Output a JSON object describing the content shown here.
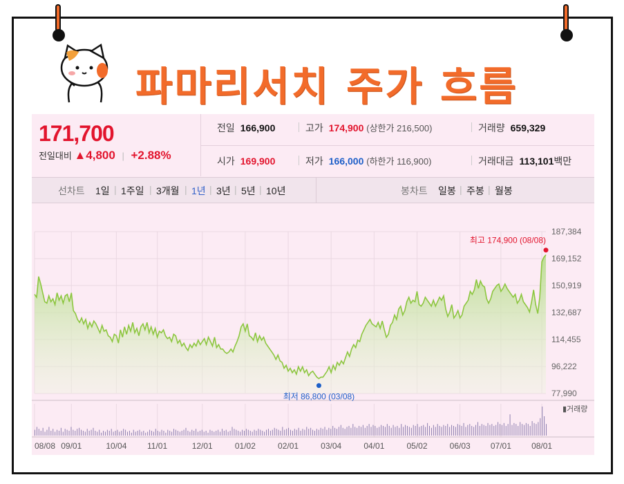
{
  "title": "파마리서치 주가 흐름",
  "quote": {
    "price": "171,700",
    "change_label": "전일대비",
    "change_arrow": "▲",
    "change": "4,800",
    "change_pct": "+2.88%",
    "stats": {
      "prev_close_label": "전일",
      "prev_close": "166,900",
      "high_label": "고가",
      "high": "174,900",
      "upper_limit": "(상한가 216,500)",
      "volume_label": "거래량",
      "volume": "659,329",
      "open_label": "시가",
      "open": "169,900",
      "low_label": "저가",
      "low": "166,000",
      "lower_limit": "(하한가 116,900)",
      "value_label": "거래대금",
      "value": "113,101",
      "value_unit": "백만"
    }
  },
  "tabs": {
    "line_label": "선차트",
    "periods": [
      "1일",
      "1주일",
      "3개월",
      "1년",
      "3년",
      "5년",
      "10년"
    ],
    "active": "1년",
    "candle_label": "봉차트",
    "candle_periods": [
      "일봉",
      "주봉",
      "월봉"
    ]
  },
  "colors": {
    "accent": "#f26b2a",
    "up": "#e2142d",
    "down": "#1e5fc8",
    "line": "#8cc63f",
    "panel": "#fcebf4"
  },
  "chart_data": {
    "type": "area",
    "x_ticks": [
      "08/08",
      "09/01",
      "10/04",
      "11/01",
      "12/01",
      "01/02",
      "02/01",
      "03/04",
      "04/01",
      "05/02",
      "06/03",
      "07/01",
      "08/01"
    ],
    "y_ticks": [
      "187,384",
      "169,152",
      "150,919",
      "132,687",
      "114,455",
      "96,222",
      "77,990"
    ],
    "ylim": [
      77990,
      187384
    ],
    "volume_label": "거래량",
    "grid": true,
    "high_annotation": "최고 174,900 (08/08)",
    "low_annotation": "최저 86,800 (03/08)",
    "series": [
      {
        "values": [
          145000,
          143000,
          157000,
          152000,
          146000,
          140000,
          139000,
          144000,
          140000,
          142000,
          138000,
          146000,
          141000,
          144000,
          139000,
          144000,
          145000,
          140000,
          146000,
          134000,
          132000,
          128000,
          126000,
          129000,
          125000,
          128000,
          122000,
          126000,
          123000,
          127000,
          125000,
          122000,
          119000,
          124000,
          120000,
          121000,
          117000,
          116000,
          113000,
          118000,
          117000,
          112000,
          121000,
          116000,
          123000,
          118000,
          124000,
          120000,
          126000,
          119000,
          122000,
          117000,
          123000,
          125000,
          121000,
          126000,
          119000,
          123000,
          118000,
          122000,
          116000,
          120000,
          119000,
          121000,
          117000,
          115000,
          116000,
          113000,
          118000,
          117000,
          112000,
          114000,
          110000,
          112000,
          109000,
          107000,
          111000,
          109000,
          112000,
          110000,
          114000,
          111000,
          113000,
          115000,
          111000,
          116000,
          113000,
          110000,
          116000,
          109000,
          111000,
          108000,
          108000,
          106000,
          105000,
          106000,
          108000,
          106000,
          110000,
          113000,
          117000,
          123000,
          125000,
          120000,
          125000,
          117000,
          116000,
          114000,
          119000,
          113000,
          117000,
          114000,
          116000,
          112000,
          110000,
          108000,
          106000,
          104000,
          101000,
          104000,
          100000,
          99000,
          95000,
          97000,
          93000,
          95000,
          92000,
          94000,
          91000,
          96000,
          93000,
          96000,
          92000,
          94000,
          90000,
          92000,
          93000,
          91000,
          89000,
          88000,
          89000,
          89000,
          91000,
          93000,
          96000,
          92000,
          97000,
          94000,
          99000,
          97000,
          100000,
          98000,
          102000,
          106000,
          103000,
          108000,
          111000,
          109000,
          114000,
          113000,
          118000,
          121000,
          124000,
          126000,
          128000,
          125000,
          124000,
          123000,
          126000,
          122000,
          127000,
          121000,
          116000,
          118000,
          124000,
          126000,
          131000,
          128000,
          135000,
          137000,
          131000,
          134000,
          140000,
          143000,
          139000,
          141000,
          140000,
          147000,
          138000,
          137000,
          139000,
          143000,
          141000,
          139000,
          137000,
          141000,
          137000,
          140000,
          143000,
          141000,
          144000,
          135000,
          130000,
          133000,
          138000,
          129000,
          131000,
          134000,
          129000,
          131000,
          137000,
          139000,
          141000,
          147000,
          145000,
          148000,
          155000,
          149000,
          154000,
          151000,
          150000,
          142000,
          139000,
          142000,
          147000,
          149000,
          151000,
          152000,
          147000,
          149000,
          152000,
          149000,
          147000,
          145000,
          143000,
          145000,
          139000,
          141000,
          145000,
          140000,
          138000,
          136000,
          133000,
          140000,
          148000,
          138000,
          132000,
          143000,
          167000,
          170000,
          171700
        ]
      }
    ],
    "volume": [
      6,
      9,
      7,
      5,
      8,
      4,
      6,
      9,
      5,
      7,
      4,
      6,
      5,
      8,
      4,
      7,
      6,
      5,
      9,
      6,
      5,
      7,
      8,
      6,
      5,
      4,
      7,
      5,
      6,
      8,
      5,
      4,
      6,
      3,
      5,
      4,
      6,
      5,
      7,
      4,
      5,
      6,
      4,
      5,
      7,
      6,
      4,
      5,
      3,
      6,
      4,
      5,
      6,
      4,
      5,
      3,
      4,
      6,
      5,
      4,
      7,
      5,
      4,
      6,
      5,
      3,
      6,
      5,
      4,
      7,
      6,
      5,
      4,
      5,
      6,
      8,
      5,
      4,
      6,
      5,
      7,
      4,
      5,
      6,
      4,
      5,
      3,
      6,
      5,
      4,
      5,
      6,
      4,
      7,
      5,
      6,
      4,
      5,
      9,
      7,
      6,
      5,
      4,
      6,
      5,
      7,
      6,
      5,
      4,
      6,
      5,
      7,
      6,
      5,
      4,
      6,
      7,
      5,
      6,
      8,
      7,
      6,
      5,
      9,
      6,
      7,
      8,
      6,
      5,
      7,
      6,
      8,
      5,
      7,
      6,
      9,
      7,
      8,
      6,
      5,
      7,
      6,
      8,
      7,
      9,
      6,
      8,
      7,
      10,
      8,
      7,
      9,
      11,
      8,
      7,
      9,
      10,
      8,
      12,
      9,
      8,
      10,
      9,
      11,
      8,
      10,
      12,
      9,
      11,
      10,
      8,
      9,
      11,
      10,
      9,
      12,
      10,
      8,
      11,
      9,
      10,
      8,
      12,
      9,
      11,
      10,
      9,
      8,
      11,
      10,
      12,
      9,
      10,
      11,
      9,
      13,
      10,
      8,
      11,
      9,
      12,
      10,
      9,
      11,
      10,
      12,
      9,
      11,
      10,
      9,
      12,
      11,
      10,
      13,
      9,
      11,
      12,
      10,
      9,
      11,
      14,
      10,
      12,
      11,
      10,
      13,
      11,
      12,
      10,
      11,
      14,
      12,
      11,
      13,
      10,
      12,
      22,
      11,
      13,
      12,
      10,
      14,
      12,
      11,
      13,
      12,
      10,
      15,
      13,
      12,
      14,
      18,
      30,
      20,
      12
    ]
  }
}
